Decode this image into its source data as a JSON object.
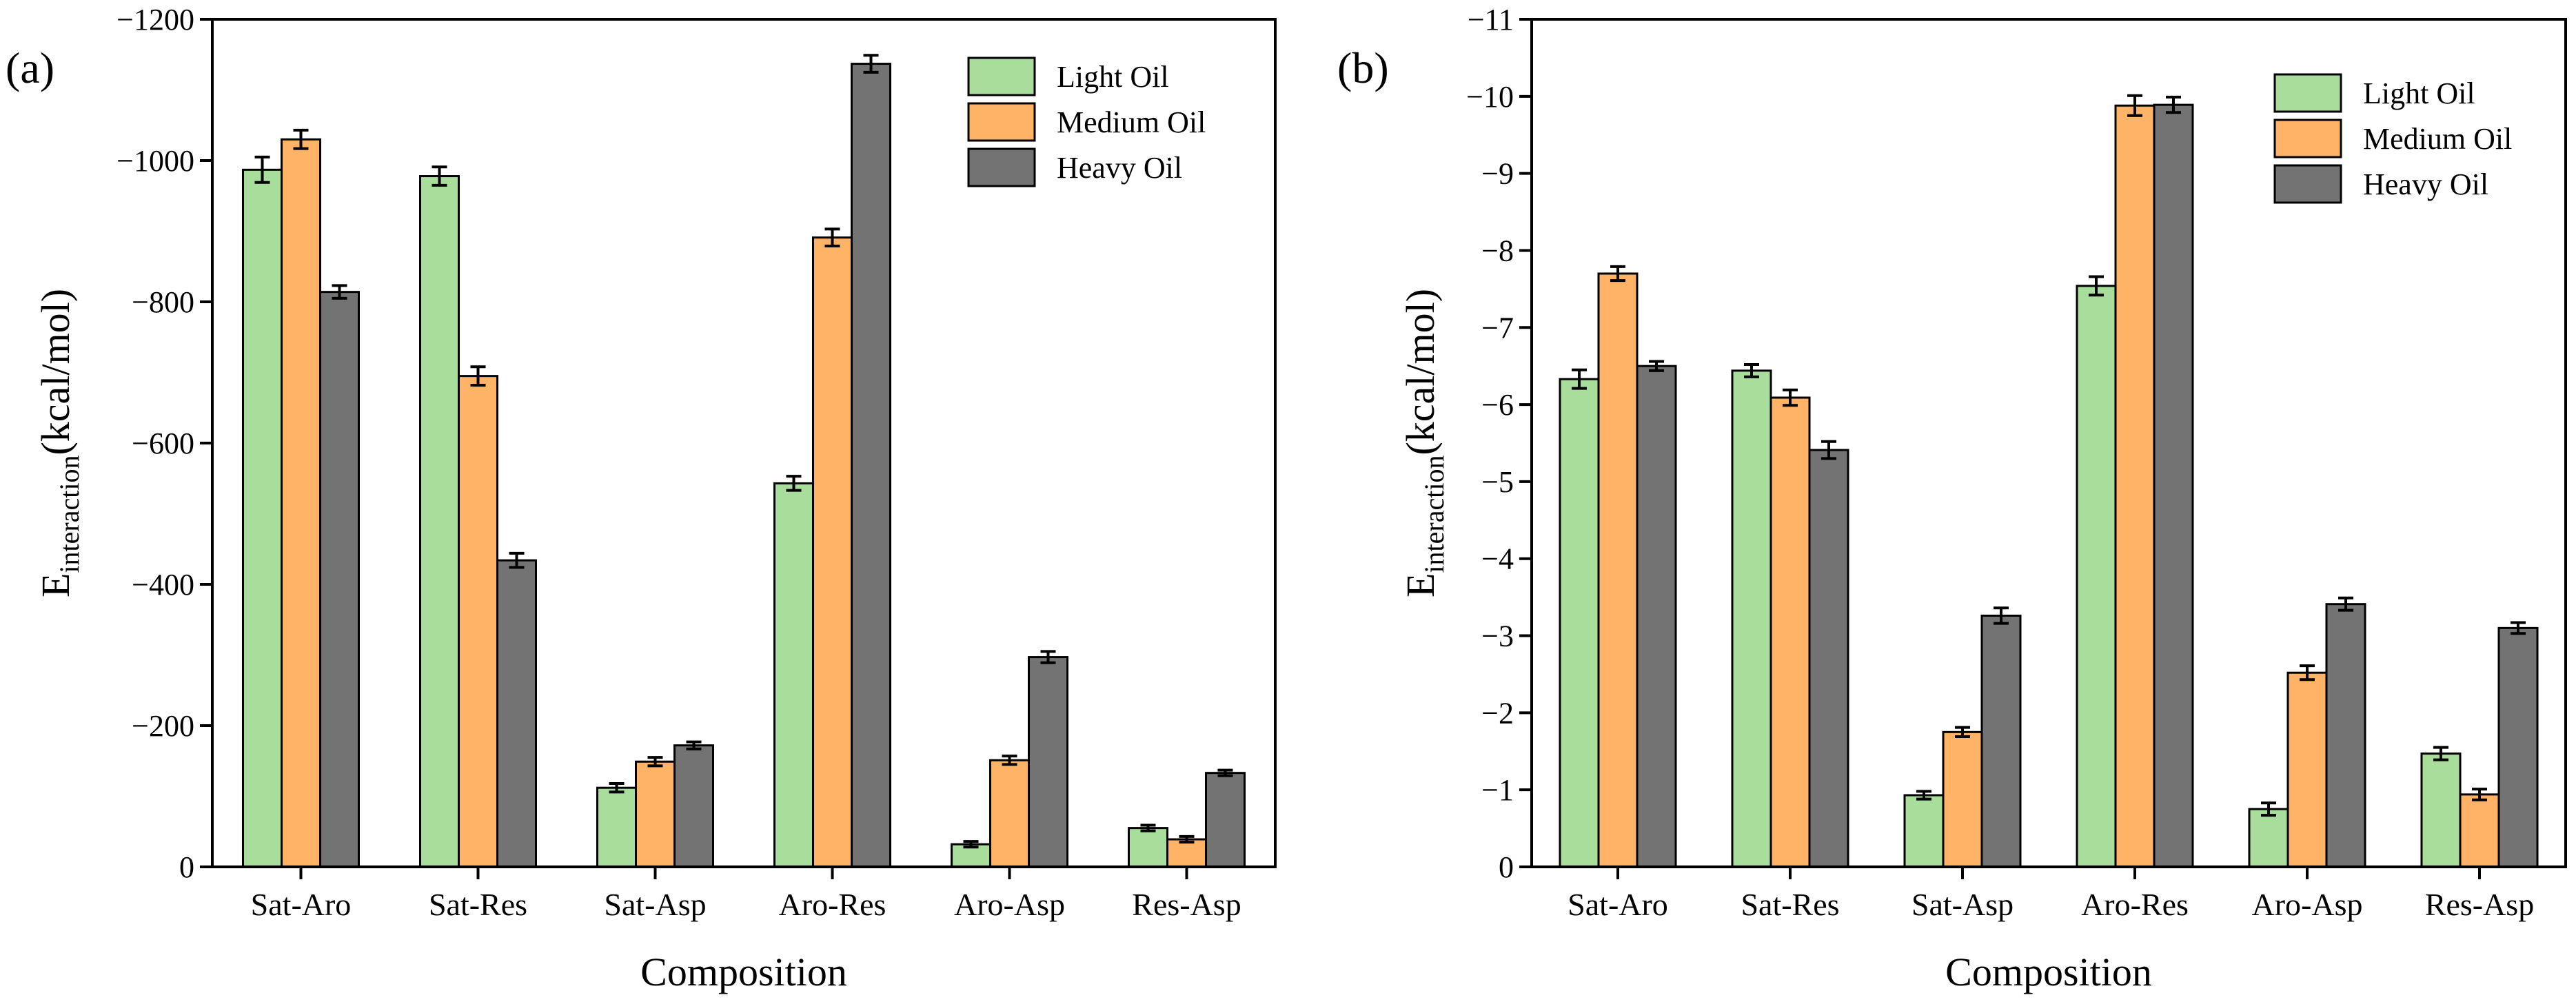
{
  "chart_data": [
    {
      "type": "bar",
      "panel_label": "(a)",
      "categories": [
        "Sat-Aro",
        "Sat-Res",
        "Sat-Asp",
        "Aro-Res",
        "Aro-Asp",
        "Res-Asp"
      ],
      "series": [
        {
          "name": "Light Oil",
          "color": "#a9dd9c",
          "values": [
            -987,
            -978,
            -112,
            -543,
            -32,
            -55
          ],
          "errors": [
            18,
            13,
            6,
            10,
            4,
            4
          ]
        },
        {
          "name": "Medium Oil",
          "color": "#ffb366",
          "values": [
            -1030,
            -695,
            -149,
            -891,
            -151,
            -39
          ],
          "errors": [
            13,
            13,
            6,
            12,
            6,
            4
          ]
        },
        {
          "name": "Heavy Oil",
          "color": "#737373",
          "values": [
            -814,
            -434,
            -172,
            -1137,
            -297,
            -133
          ],
          "errors": [
            9,
            10,
            5,
            12,
            8,
            4
          ]
        }
      ],
      "xlabel": "Composition",
      "ylabel_main": "E",
      "ylabel_sub": "interaction",
      "ylabel_unit": "(kcal/mol)",
      "ylim": [
        0,
        -1200
      ],
      "axis_max": -1200,
      "yticks": [
        0,
        -200,
        -400,
        -600,
        -800,
        -1000,
        -1200
      ],
      "ytick_labels": [
        "0",
        "−200",
        "−400",
        "−600",
        "−800",
        "−1000",
        "−1200"
      ],
      "legend": "top-right"
    },
    {
      "type": "bar",
      "panel_label": "(b)",
      "categories": [
        "Sat-Aro",
        "Sat-Res",
        "Sat-Asp",
        "Aro-Res",
        "Aro-Asp",
        "Res-Asp"
      ],
      "series": [
        {
          "name": "Light Oil",
          "color": "#a9dd9c",
          "values": [
            -6.33,
            -6.44,
            -0.93,
            -7.54,
            -0.75,
            -1.47
          ],
          "errors": [
            0.12,
            0.08,
            0.05,
            0.12,
            0.08,
            0.08
          ]
        },
        {
          "name": "Medium Oil",
          "color": "#ffb366",
          "values": [
            -7.7,
            -6.09,
            -1.75,
            -9.88,
            -2.52,
            -0.94
          ],
          "errors": [
            0.09,
            0.1,
            0.06,
            0.13,
            0.09,
            0.07
          ]
        },
        {
          "name": "Heavy Oil",
          "color": "#737373",
          "values": [
            -6.5,
            -5.41,
            -3.26,
            -9.89,
            -3.41,
            -3.1
          ],
          "errors": [
            0.06,
            0.11,
            0.1,
            0.1,
            0.08,
            0.07
          ]
        }
      ],
      "xlabel": "Composition",
      "ylabel_main": "E",
      "ylabel_sub": "interaction",
      "ylabel_unit": "(kcal/mol)",
      "ylim": [
        0,
        -11
      ],
      "axis_max": -11,
      "yticks": [
        0,
        -1,
        -2,
        -3,
        -4,
        -5,
        -6,
        -7,
        -8,
        -9,
        -10,
        -11
      ],
      "ytick_labels": [
        "0",
        "−1",
        "−2",
        "−3",
        "−4",
        "−5",
        "−6",
        "−7",
        "−8",
        "−9",
        "−10",
        "−11"
      ],
      "legend": "top-right"
    }
  ]
}
